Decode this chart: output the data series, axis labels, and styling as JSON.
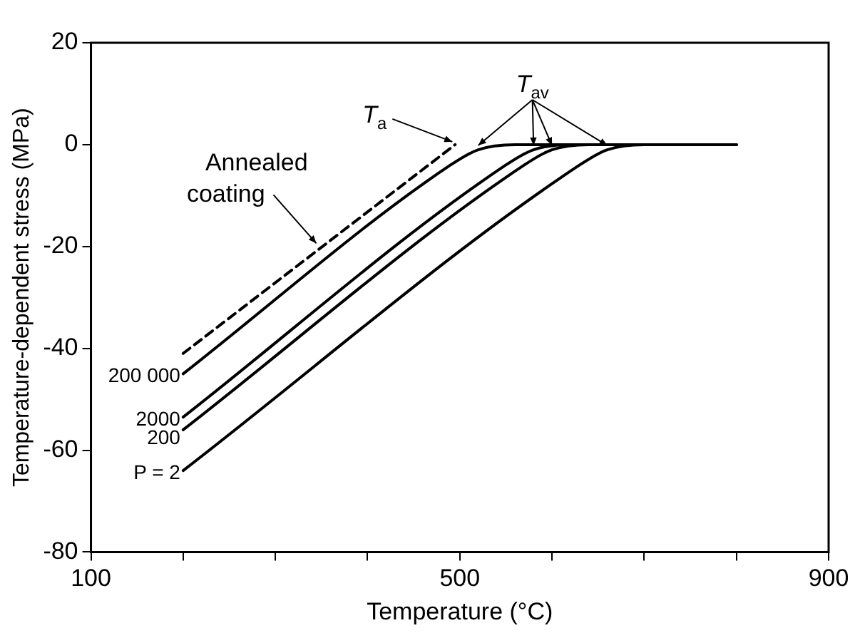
{
  "chart_data": {
    "type": "line",
    "xlabel": "Temperature (°C)",
    "ylabel": "Temperature-dependent stress (MPa)",
    "xlim": [
      100,
      900
    ],
    "xticks": [
      100,
      {
        "value": 200,
        "label": null
      },
      {
        "value": 300,
        "label": null
      },
      {
        "value": 400,
        "label": null
      },
      500,
      {
        "value": 600,
        "label": null
      },
      {
        "value": 700,
        "label": null
      },
      {
        "value": 800,
        "label": null
      },
      900
    ],
    "ylim": [
      -80,
      20
    ],
    "yticks": [
      20,
      0,
      -20,
      -40,
      -60,
      -80
    ],
    "grid": false,
    "legend": false,
    "marker": "none",
    "series": [
      {
        "name": "Annealed coating",
        "color": "#000000",
        "line_style": "dashed",
        "x": [
          200,
          495
        ],
        "values": [
          -41,
          0
        ]
      },
      {
        "name": "200 000",
        "color": "#000000",
        "x": [
          200,
          490,
          520,
          560,
          800
        ],
        "values": [
          -45,
          -4,
          -1,
          0,
          0
        ]
      },
      {
        "name": "2000",
        "color": "#000000",
        "x": [
          200,
          550,
          580,
          620,
          800
        ],
        "values": [
          -53.5,
          -4,
          -1,
          0,
          0
        ]
      },
      {
        "name": "200",
        "color": "#000000",
        "x": [
          200,
          570,
          600,
          640,
          800
        ],
        "values": [
          -56,
          -4,
          -1,
          0,
          0
        ]
      },
      {
        "name": "P = 2",
        "color": "#000000",
        "x": [
          200,
          630,
          660,
          700,
          800
        ],
        "values": [
          -64,
          -4,
          -1,
          0,
          0
        ]
      }
    ],
    "annotations": [
      {
        "text": "T$_{a}$",
        "x": 495,
        "y": 0
      },
      {
        "text": "T$_{av}$",
        "x": 520,
        "y": -1
      }
    ]
  }
}
